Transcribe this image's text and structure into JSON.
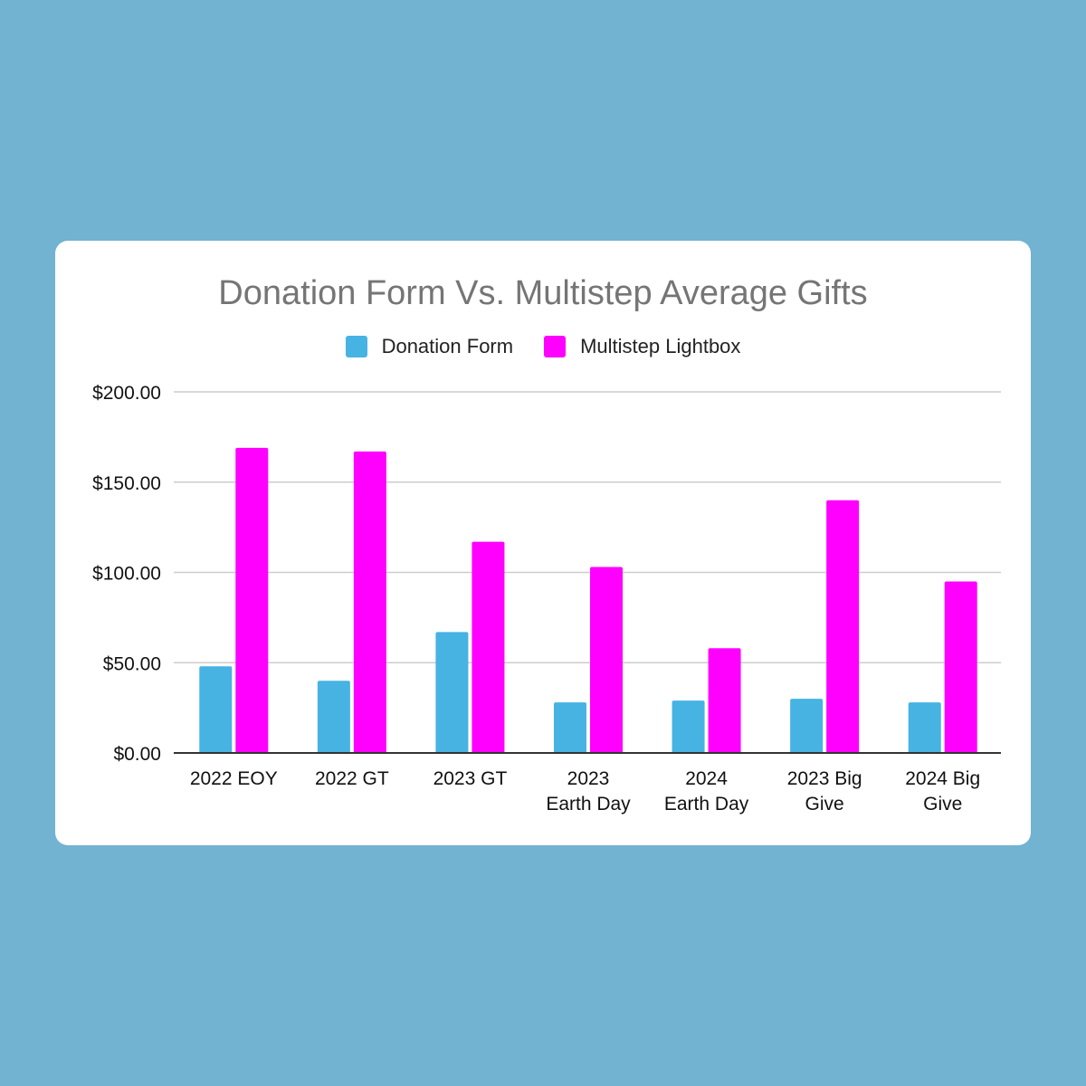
{
  "chart_data": {
    "type": "bar",
    "title": "Donation Form Vs. Multistep Average Gifts",
    "xlabel": "",
    "ylabel": "",
    "ylim": [
      0,
      200
    ],
    "yticks": [
      0,
      50,
      100,
      150,
      200
    ],
    "ytick_labels": [
      "$0.00",
      "$50.00",
      "$100.00",
      "$150.00",
      "$200.00"
    ],
    "grid": true,
    "legend_position": "top-center",
    "categories": [
      [
        "2022 EOY"
      ],
      [
        "2022 GT"
      ],
      [
        "2023 GT"
      ],
      [
        "2023",
        "Earth Day"
      ],
      [
        "2024",
        "Earth Day"
      ],
      [
        "2023 Big",
        "Give"
      ],
      [
        "2024 Big",
        "Give"
      ]
    ],
    "series": [
      {
        "name": "Donation Form",
        "color": "#46b3e3",
        "values": [
          48,
          40,
          67,
          28,
          29,
          30,
          28
        ]
      },
      {
        "name": "Multistep Lightbox",
        "color": "#ff00ff",
        "values": [
          169,
          167,
          117,
          103,
          58,
          140,
          95
        ]
      }
    ]
  }
}
